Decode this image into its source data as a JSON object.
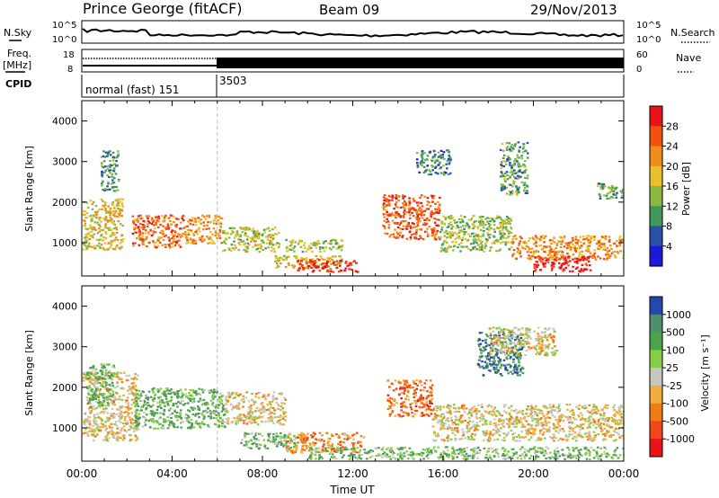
{
  "header": {
    "station": "Prince George (fitACF)",
    "beam": "Beam 09",
    "date": "29/Nov/2013"
  },
  "status_panels": {
    "nsky_label": "N.Sky",
    "nsky_ticks": [
      "10^5",
      "10^0"
    ],
    "nsearch_label": "N.Search",
    "nsearch_ticks": [
      "10^5",
      "10^0"
    ],
    "freq_label": "Freq.",
    "freq_unit": "[MHz]",
    "freq_ticks": [
      "18",
      "8"
    ],
    "nave_label": "Nave",
    "nave_ticks": [
      "60",
      "0"
    ],
    "cpid_label": "CPID",
    "cpid_segments": [
      {
        "name": "normal (fast) 151",
        "start_hour": 0
      },
      {
        "name": "3503",
        "start_hour": 6
      }
    ]
  },
  "chart_data": [
    {
      "type": "heatmap",
      "title": "",
      "xlabel": "",
      "ylabel": "Slant Range [km]",
      "xlim": [
        0,
        24
      ],
      "ylim": [
        180,
        4500
      ],
      "yticks": [
        1000,
        2000,
        3000,
        4000
      ],
      "colorbar": {
        "label": "Power [dB]",
        "ticks": [
          "28",
          "24",
          "20",
          "16",
          "12",
          "8",
          "4"
        ],
        "colors": [
          "#e8141a",
          "#f2520e",
          "#f08c1c",
          "#e9bf2c",
          "#8ab942",
          "#3f9a58",
          "#2a4fa8",
          "#1a1ad8"
        ]
      },
      "blobs": [
        {
          "t0": 0.0,
          "t1": 1.8,
          "r0": 850,
          "r1": 2100,
          "level": 0.55
        },
        {
          "t0": 0.8,
          "t1": 1.6,
          "r0": 2300,
          "r1": 3300,
          "level": 0.3
        },
        {
          "t0": 2.2,
          "t1": 4.5,
          "r0": 900,
          "r1": 1700,
          "level": 0.75
        },
        {
          "t0": 4.5,
          "t1": 6.2,
          "r0": 1000,
          "r1": 1700,
          "level": 0.65
        },
        {
          "t0": 6.2,
          "t1": 8.7,
          "r0": 800,
          "r1": 1400,
          "level": 0.5
        },
        {
          "t0": 8.5,
          "t1": 11.5,
          "r0": 400,
          "r1": 700,
          "level": 0.55
        },
        {
          "t0": 9.5,
          "t1": 12.3,
          "r0": 300,
          "r1": 600,
          "level": 0.9
        },
        {
          "t0": 9.0,
          "t1": 11.5,
          "r0": 800,
          "r1": 1100,
          "level": 0.45
        },
        {
          "t0": 13.3,
          "t1": 15.8,
          "r0": 1100,
          "r1": 2200,
          "level": 0.8
        },
        {
          "t0": 15.8,
          "t1": 19.0,
          "r0": 800,
          "r1": 1700,
          "level": 0.45
        },
        {
          "t0": 19.0,
          "t1": 24.0,
          "r0": 600,
          "r1": 1200,
          "level": 0.7
        },
        {
          "t0": 20.0,
          "t1": 22.5,
          "r0": 300,
          "r1": 700,
          "level": 0.95
        },
        {
          "t0": 18.5,
          "t1": 19.7,
          "r0": 2200,
          "r1": 3500,
          "level": 0.35
        },
        {
          "t0": 22.8,
          "t1": 24.0,
          "r0": 2100,
          "r1": 2500,
          "level": 0.35
        },
        {
          "t0": 14.8,
          "t1": 16.3,
          "r0": 2700,
          "r1": 3300,
          "level": 0.25
        }
      ]
    },
    {
      "type": "heatmap",
      "title": "",
      "xlabel": "Time UT",
      "ylabel": "Slant Range [km]",
      "xlim": [
        0,
        24
      ],
      "ylim": [
        180,
        4500
      ],
      "xticks": [
        "00:00",
        "04:00",
        "08:00",
        "12:00",
        "16:00",
        "20:00",
        "00:00"
      ],
      "yticks": [
        1000,
        2000,
        3000,
        4000
      ],
      "colorbar": {
        "label": "Velocity [m s⁻¹]",
        "ticks": [
          "1000",
          "500",
          "100",
          "25",
          "-25",
          "-100",
          "-500",
          "-1000"
        ],
        "colors": [
          "#2448b0",
          "#4f8f6a",
          "#4ca44a",
          "#86cc44",
          "#c6c6c0",
          "#f0ac3c",
          "#f07c14",
          "#f04818",
          "#e8141a"
        ]
      },
      "blobs": [
        {
          "t0": 0.0,
          "t1": 2.5,
          "r0": 700,
          "r1": 2400,
          "level": 0.45
        },
        {
          "t0": 0.2,
          "t1": 1.4,
          "r0": 1500,
          "r1": 2600,
          "level": 0.7
        },
        {
          "t0": 2.3,
          "t1": 6.3,
          "r0": 1000,
          "r1": 2000,
          "level": 0.7
        },
        {
          "t0": 6.3,
          "t1": 9.0,
          "r0": 1100,
          "r1": 1900,
          "level": 0.45
        },
        {
          "t0": 7.0,
          "t1": 9.5,
          "r0": 500,
          "r1": 900,
          "level": 0.68
        },
        {
          "t0": 9.0,
          "t1": 12.5,
          "r0": 400,
          "r1": 900,
          "level": 0.3
        },
        {
          "t0": 13.5,
          "t1": 15.5,
          "r0": 1300,
          "r1": 2200,
          "level": 0.25
        },
        {
          "t0": 15.5,
          "t1": 24.0,
          "r0": 700,
          "r1": 1600,
          "level": 0.45
        },
        {
          "t0": 10.0,
          "t1": 24.0,
          "r0": 250,
          "r1": 550,
          "level": 0.65
        },
        {
          "t0": 17.5,
          "t1": 19.5,
          "r0": 2300,
          "r1": 3400,
          "level": 0.85
        },
        {
          "t0": 18.0,
          "t1": 21.0,
          "r0": 2800,
          "r1": 3500,
          "level": 0.45
        }
      ]
    }
  ]
}
